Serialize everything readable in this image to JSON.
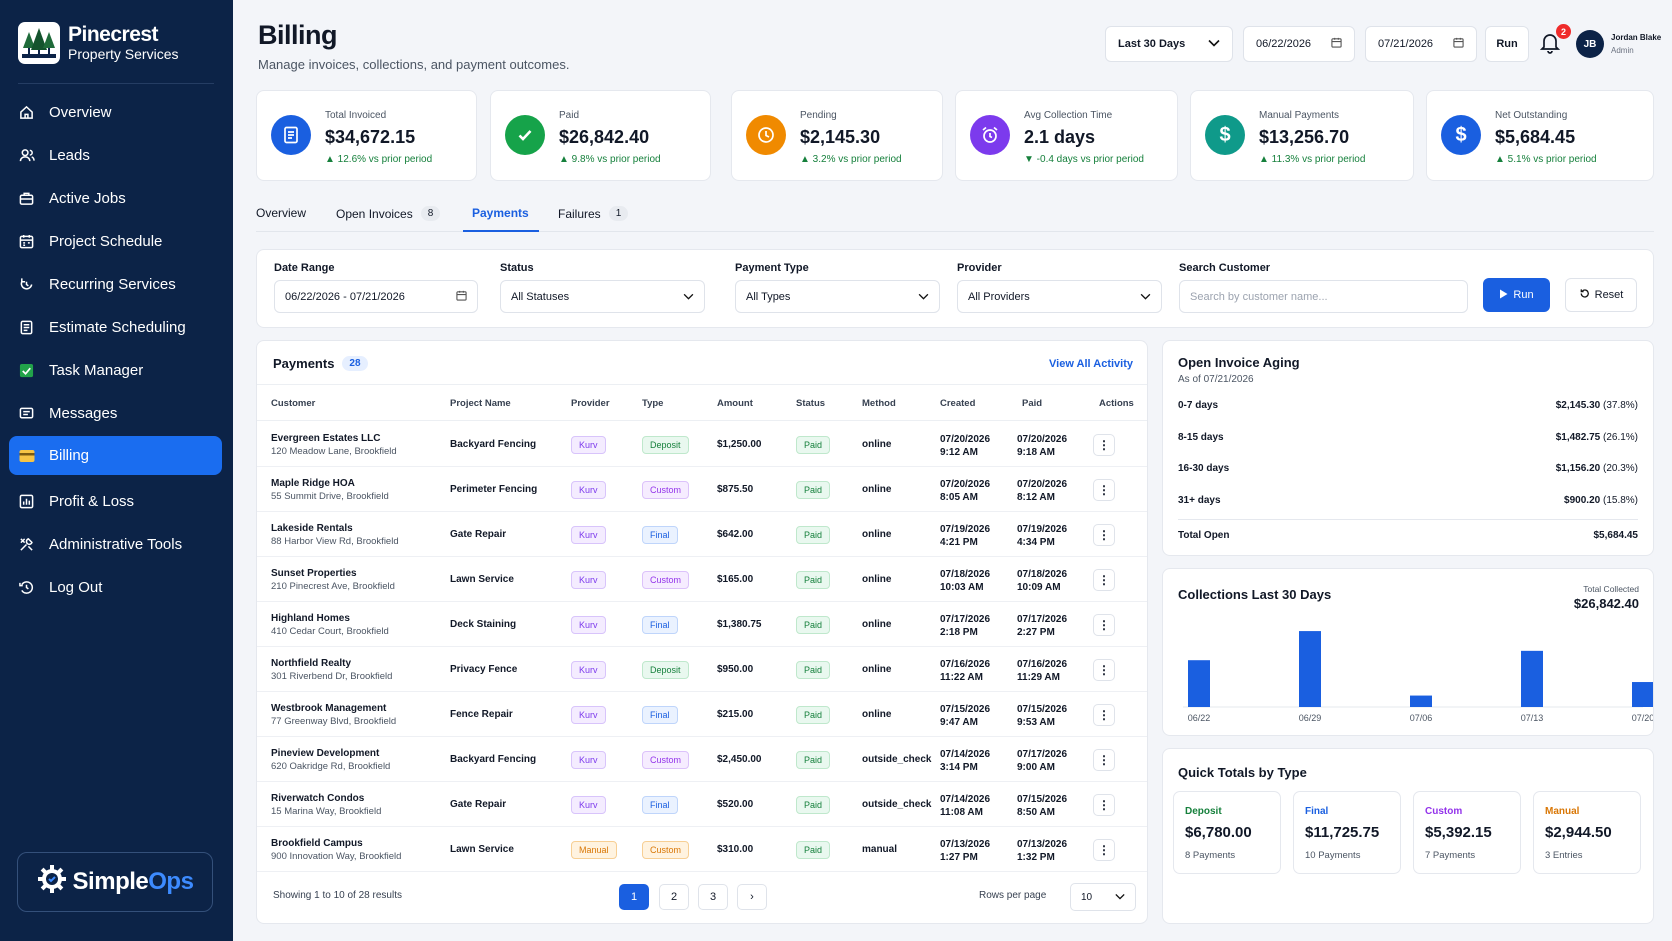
{
  "brand": {
    "name": "Pinecrest",
    "sub": "Property Services",
    "footer_simple": "Simple",
    "footer_ops": "Ops"
  },
  "nav": [
    {
      "label": "Overview",
      "icon": "home-icon"
    },
    {
      "label": "Leads",
      "icon": "users-icon"
    },
    {
      "label": "Active Jobs",
      "icon": "briefcase-icon"
    },
    {
      "label": "Project Schedule",
      "icon": "calendar-icon"
    },
    {
      "label": "Recurring Services",
      "icon": "refresh-icon"
    },
    {
      "label": "Estimate Scheduling",
      "icon": "document-icon"
    },
    {
      "label": "Task Manager",
      "icon": "checkbox-icon"
    },
    {
      "label": "Messages",
      "icon": "message-icon"
    },
    {
      "label": "Billing",
      "icon": "credit-card-icon",
      "active": true
    },
    {
      "label": "Profit & Loss",
      "icon": "bar-chart-icon"
    },
    {
      "label": "Administrative Tools",
      "icon": "tools-icon"
    },
    {
      "label": "Log Out",
      "icon": "logout-icon"
    }
  ],
  "header": {
    "title": "Billing",
    "subtitle": "Manage invoices, collections, and payment outcomes.",
    "range_select": "Last 30 Days",
    "date_from": "06/22/2026",
    "date_to": "07/21/2026",
    "run": "Run",
    "notif_count": "2",
    "user_initials": "JB",
    "user_name": "Jordan Blake",
    "user_role": "Admin"
  },
  "kpis": [
    {
      "label": "Total Invoiced",
      "value": "$34,672.15",
      "delta": "▲ 12.6% vs prior period",
      "color": "#1a5fe0",
      "icon": "invoice-icon"
    },
    {
      "label": "Paid",
      "value": "$26,842.40",
      "delta": "▲ 9.8% vs prior period",
      "color": "#16a34a",
      "icon": "check-icon"
    },
    {
      "label": "Pending",
      "value": "$2,145.30",
      "delta": "▲ 3.2% vs prior period",
      "color": "#f08a00",
      "icon": "clock-icon"
    },
    {
      "label": "Avg Collection Time",
      "value": "2.1 days",
      "delta": "▼ -0.4 days vs prior period",
      "color": "#7c3aed",
      "icon": "alarm-icon"
    },
    {
      "label": "Manual Payments",
      "value": "$13,256.70",
      "delta": "▲ 11.3% vs prior period",
      "color": "#0f9a8a",
      "icon": "dollar-icon"
    },
    {
      "label": "Net Outstanding",
      "value": "$5,684.45",
      "delta": "▲ 5.1% vs prior period",
      "color": "#1a5fe0",
      "icon": "dollar-icon"
    }
  ],
  "tabs": [
    {
      "label": "Overview",
      "count": ""
    },
    {
      "label": "Open Invoices",
      "count": "8"
    },
    {
      "label": "Payments",
      "count": ""
    },
    {
      "label": "Failures",
      "count": "1"
    }
  ],
  "filters": {
    "date_label": "Date Range",
    "date_value": "06/22/2026 - 07/21/2026",
    "status_label": "Status",
    "status_value": "All Statuses",
    "type_label": "Payment Type",
    "type_value": "All Types",
    "provider_label": "Provider",
    "provider_value": "All Providers",
    "search_label": "Search Customer",
    "search_placeholder": "Search by customer name...",
    "run": "Run",
    "reset": "Reset"
  },
  "payments": {
    "title": "Payments",
    "count": "28",
    "view_all": "View All Activity",
    "columns": [
      "Customer",
      "Project Name",
      "Provider",
      "Type",
      "Amount",
      "Status",
      "Method",
      "Created",
      "Paid",
      "Actions"
    ],
    "rows": [
      {
        "customer": "Evergreen Estates LLC",
        "address": "120 Meadow Lane, Brookfield",
        "project": "Backyard Fencing",
        "provider": "Kurv",
        "type": "Deposit",
        "amount": "$1,250.00",
        "status": "Paid",
        "method": "online",
        "created_d": "07/20/2026",
        "created_t": "9:12 AM",
        "paid_d": "07/20/2026",
        "paid_t": "9:18 AM"
      },
      {
        "customer": "Maple Ridge HOA",
        "address": "55 Summit Drive, Brookfield",
        "project": "Perimeter Fencing",
        "provider": "Kurv",
        "type": "Custom",
        "amount": "$875.50",
        "status": "Paid",
        "method": "online",
        "created_d": "07/20/2026",
        "created_t": "8:05 AM",
        "paid_d": "07/20/2026",
        "paid_t": "8:12 AM"
      },
      {
        "customer": "Lakeside Rentals",
        "address": "88 Harbor View Rd, Brookfield",
        "project": "Gate Repair",
        "provider": "Kurv",
        "type": "Final",
        "amount": "$642.00",
        "status": "Paid",
        "method": "online",
        "created_d": "07/19/2026",
        "created_t": "4:21 PM",
        "paid_d": "07/19/2026",
        "paid_t": "4:34 PM"
      },
      {
        "customer": "Sunset Properties",
        "address": "210 Pinecrest Ave, Brookfield",
        "project": "Lawn Service",
        "provider": "Kurv",
        "type": "Custom",
        "amount": "$165.00",
        "status": "Paid",
        "method": "online",
        "created_d": "07/18/2026",
        "created_t": "10:03 AM",
        "paid_d": "07/18/2026",
        "paid_t": "10:09 AM"
      },
      {
        "customer": "Highland Homes",
        "address": "410 Cedar Court, Brookfield",
        "project": "Deck Staining",
        "provider": "Kurv",
        "type": "Final",
        "amount": "$1,380.75",
        "status": "Paid",
        "method": "online",
        "created_d": "07/17/2026",
        "created_t": "2:18 PM",
        "paid_d": "07/17/2026",
        "paid_t": "2:27 PM"
      },
      {
        "customer": "Northfield Realty",
        "address": "301 Riverbend Dr, Brookfield",
        "project": "Privacy Fence",
        "provider": "Kurv",
        "type": "Deposit",
        "amount": "$950.00",
        "status": "Paid",
        "method": "online",
        "created_d": "07/16/2026",
        "created_t": "11:22 AM",
        "paid_d": "07/16/2026",
        "paid_t": "11:29 AM"
      },
      {
        "customer": "Westbrook Management",
        "address": "77 Greenway Blvd, Brookfield",
        "project": "Fence Repair",
        "provider": "Kurv",
        "type": "Final",
        "amount": "$215.00",
        "status": "Paid",
        "method": "online",
        "created_d": "07/15/2026",
        "created_t": "9:47 AM",
        "paid_d": "07/15/2026",
        "paid_t": "9:53 AM"
      },
      {
        "customer": "Pineview Development",
        "address": "620 Oakridge Rd, Brookfield",
        "project": "Backyard Fencing",
        "provider": "Kurv",
        "type": "Custom",
        "amount": "$2,450.00",
        "status": "Paid",
        "method": "outside_check",
        "created_d": "07/14/2026",
        "created_t": "3:14 PM",
        "paid_d": "07/17/2026",
        "paid_t": "9:00 AM"
      },
      {
        "customer": "Riverwatch Condos",
        "address": "15 Marina Way, Brookfield",
        "project": "Gate Repair",
        "provider": "Kurv",
        "type": "Final",
        "amount": "$520.00",
        "status": "Paid",
        "method": "outside_check",
        "created_d": "07/14/2026",
        "created_t": "11:08 AM",
        "paid_d": "07/15/2026",
        "paid_t": "8:50 AM"
      },
      {
        "customer": "Brookfield Campus",
        "address": "900 Innovation Way, Brookfield",
        "project": "Lawn Service",
        "provider": "Manual",
        "type": "Custom",
        "amount": "$310.00",
        "status": "Paid",
        "method": "manual",
        "created_d": "07/13/2026",
        "created_t": "1:27 PM",
        "paid_d": "07/13/2026",
        "paid_t": "1:32 PM"
      }
    ],
    "showing": "Showing 1 to 10 of 28 results",
    "pages": [
      "1",
      "2",
      "3",
      "›"
    ],
    "rows_per_page_label": "Rows per page",
    "rows_per_page": "10"
  },
  "aging": {
    "title": "Open Invoice Aging",
    "as_of": "As of 07/21/2026",
    "rows": [
      {
        "label": "0-7 days",
        "value": "$2,145.30",
        "pct": "(37.8%)"
      },
      {
        "label": "8-15 days",
        "value": "$1,482.75",
        "pct": "(26.1%)"
      },
      {
        "label": "16-30 days",
        "value": "$1,156.20",
        "pct": "(20.3%)"
      },
      {
        "label": "31+ days",
        "value": "$900.20",
        "pct": "(15.8%)"
      }
    ],
    "total_label": "Total Open",
    "total_value": "$5,684.45"
  },
  "collections": {
    "title": "Collections Last 30 Days",
    "total_label": "Total Collected",
    "total_value": "$26,842.40"
  },
  "chart_data": {
    "type": "bar",
    "title": "Collections Last 30 Days",
    "categories": [
      "06/22",
      "",
      "06/29",
      "",
      "07/06",
      "",
      "07/13",
      "",
      "07/20"
    ],
    "values": [
      45,
      0,
      73,
      0,
      11,
      0,
      54,
      0,
      24
    ],
    "color": "#1a5fe0"
  },
  "quick_totals": {
    "title": "Quick Totals by Type",
    "items": [
      {
        "label": "Deposit",
        "value": "$6,780.00",
        "sub": "8 Payments",
        "color": "#16803c"
      },
      {
        "label": "Final",
        "value": "$11,725.75",
        "sub": "10 Payments",
        "color": "#1a5fe0"
      },
      {
        "label": "Custom",
        "value": "$5,392.15",
        "sub": "7 Payments",
        "color": "#9333ea"
      },
      {
        "label": "Manual",
        "value": "$2,944.50",
        "sub": "3 Entries",
        "color": "#d97706"
      }
    ]
  }
}
